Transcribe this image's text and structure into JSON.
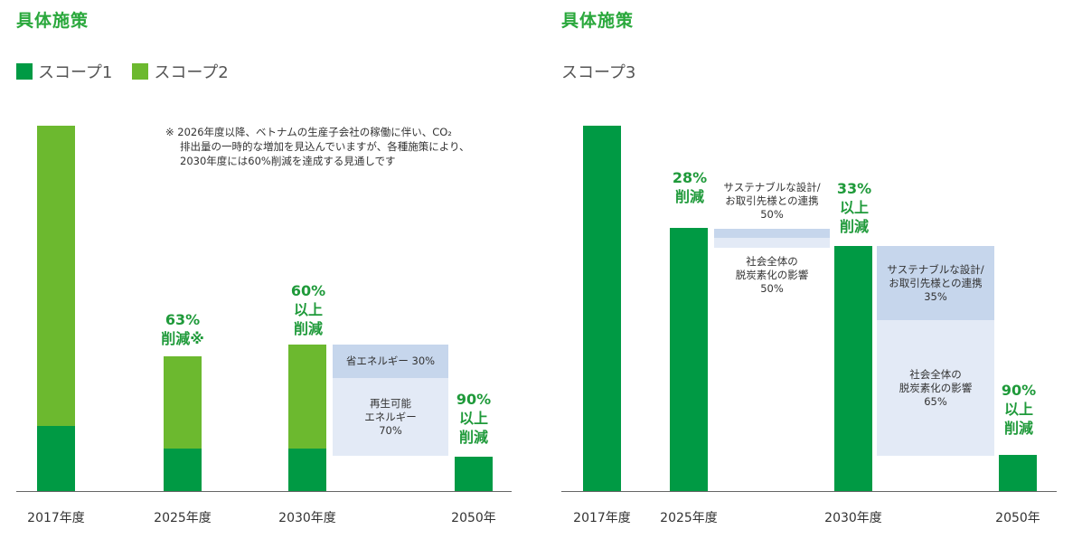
{
  "left_panel": {
    "title": "具体施策",
    "legend": [
      {
        "label": "スコープ1",
        "color": "#009a44"
      },
      {
        "label": "スコープ2",
        "color": "#6cb92f"
      }
    ],
    "note_lines": [
      "※ 2026年度以降、ベトナムの生産子会社の稼働に伴い、CO₂",
      "排出量の一時的な増加を見込んでいますが、各種施策により、",
      "2030年度には60%削減を達成する見通しです"
    ],
    "annotations": {
      "y2025": [
        "63%",
        "削減※"
      ],
      "y2030": [
        "60%",
        "以上",
        "削減"
      ],
      "y2050": [
        "90%",
        "以上",
        "削減"
      ]
    },
    "boxes": {
      "energy_saving": "省エネルギー 30%",
      "renewable": [
        "再生可能",
        "エネルギー",
        "70%"
      ]
    }
  },
  "right_panel": {
    "title": "具体施策",
    "subtitle": "スコープ3",
    "annotations": {
      "y2025": [
        "28%",
        "削減"
      ],
      "y2030": [
        "33%",
        "以上",
        "削減"
      ],
      "y2050": [
        "90%",
        "以上",
        "削減"
      ]
    },
    "boxes_2025": {
      "sustainable": [
        "サステナブルな設計/",
        "お取引先様との連携",
        "50%"
      ],
      "society": [
        "社会全体の",
        "脱炭素化の影響",
        "50%"
      ]
    },
    "boxes_2030": {
      "sustainable": [
        "サステナブルな設計/",
        "お取引先様との連携",
        "35%"
      ],
      "society": [
        "社会全体の",
        "脱炭素化の影響",
        "65%"
      ]
    }
  },
  "chart_data": [
    {
      "type": "bar",
      "stacked": true,
      "categories": [
        "2017年度",
        "2025年度",
        "2030年度",
        "2050年"
      ],
      "series": [
        {
          "name": "スコープ1",
          "values": [
            17.8,
            11.6,
            11.6,
            9.5
          ]
        },
        {
          "name": "スコープ2",
          "values": [
            82.2,
            25.4,
            28.4,
            0
          ]
        }
      ],
      "ylim": [
        0,
        100
      ],
      "grid": false
    },
    {
      "type": "bar",
      "categories": [
        "2017年度",
        "2025年度",
        "2030年度",
        "2050年"
      ],
      "series": [
        {
          "name": "スコープ3",
          "values": [
            100,
            72,
            67,
            10
          ]
        }
      ],
      "ylim": [
        0,
        100
      ],
      "grid": false
    }
  ],
  "colors": {
    "scope1": "#009a44",
    "scope2": "#6cb92f",
    "box_dark": "#c6d6ec",
    "box_light": "#e3eaf6",
    "label_green": "#1f9a3a"
  }
}
